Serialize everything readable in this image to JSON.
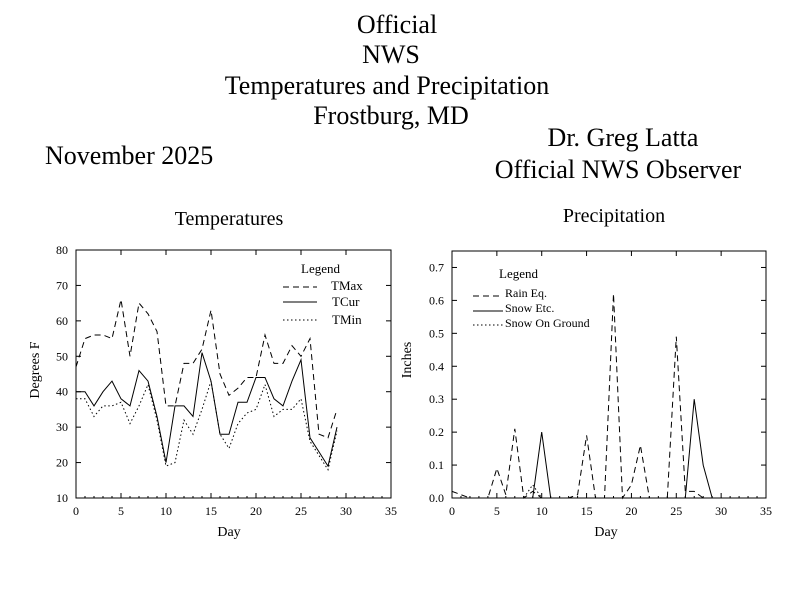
{
  "header": {
    "line1": "Official",
    "line2": "NWS",
    "line3": "Temperatures and Precipitation",
    "line4": "Frostburg, MD",
    "month": "November 2025",
    "observer_name": "Dr. Greg Latta",
    "observer_title": "Official NWS Observer"
  },
  "chart_data": [
    {
      "type": "line",
      "title": "Temperatures",
      "xlabel": "Day",
      "ylabel": "Degrees F",
      "xlim": [
        0,
        35
      ],
      "ylim": [
        10,
        80
      ],
      "xticks": [
        0,
        5,
        10,
        15,
        20,
        25,
        30,
        35
      ],
      "yticks": [
        10,
        20,
        30,
        40,
        50,
        60,
        70,
        80
      ],
      "legend_title": "Legend",
      "legend_position": "top-right",
      "x": [
        0,
        1,
        2,
        3,
        4,
        5,
        6,
        7,
        8,
        9,
        10,
        11,
        12,
        13,
        14,
        15,
        16,
        17,
        18,
        19,
        20,
        21,
        22,
        23,
        24,
        25,
        26,
        27,
        28,
        29
      ],
      "series": [
        {
          "name": "TMax",
          "style": "dashed",
          "values": [
            47,
            55,
            56,
            56,
            55,
            66,
            50,
            65,
            62,
            57,
            36,
            36,
            48,
            48,
            52,
            63,
            45,
            39,
            41,
            44,
            44,
            56,
            48,
            48,
            53,
            50,
            55,
            28,
            27,
            35
          ]
        },
        {
          "name": "TCur",
          "style": "solid",
          "values": [
            40,
            40,
            36,
            40,
            43,
            38,
            36,
            46,
            43,
            33,
            20,
            36,
            36,
            33,
            51,
            43,
            28,
            28,
            37,
            37,
            44,
            44,
            38,
            36,
            43,
            49,
            27,
            23,
            19,
            30
          ]
        },
        {
          "name": "TMin",
          "style": "dotted",
          "values": [
            38,
            38,
            33,
            36,
            36,
            37,
            31,
            36,
            42,
            32,
            19,
            20,
            32,
            28,
            35,
            43,
            28,
            24,
            31,
            34,
            35,
            42,
            33,
            35,
            35,
            38,
            26,
            22,
            18,
            29
          ]
        }
      ]
    },
    {
      "type": "line",
      "title": "Precipitation",
      "xlabel": "Day",
      "ylabel": "Inches",
      "xlim": [
        0,
        35
      ],
      "ylim": [
        0,
        0.75
      ],
      "xticks": [
        0,
        5,
        10,
        15,
        20,
        25,
        30,
        35
      ],
      "yticks": [
        "0.0",
        "0.1",
        "0.2",
        "0.3",
        "0.4",
        "0.5",
        "0.6",
        "0.7"
      ],
      "legend_title": "Legend",
      "legend_position": "top-left",
      "x": [
        0,
        1,
        2,
        3,
        4,
        5,
        6,
        7,
        8,
        9,
        10,
        11,
        12,
        13,
        14,
        15,
        16,
        17,
        18,
        19,
        20,
        21,
        22,
        23,
        24,
        25,
        26,
        27,
        28,
        29
      ],
      "series": [
        {
          "name": "Rain Eq.",
          "style": "dashed",
          "values": [
            0.02,
            0.01,
            0,
            0,
            0,
            0.09,
            0.01,
            0.21,
            0,
            0.02,
            0,
            0,
            0,
            0,
            0.01,
            0.19,
            0,
            0,
            0.62,
            0,
            0.04,
            0.16,
            0,
            0,
            0,
            0.49,
            0.02,
            0.02,
            0,
            0
          ]
        },
        {
          "name": "Snow Etc.",
          "style": "solid",
          "values": [
            0,
            0,
            0,
            0,
            0,
            0,
            0,
            0,
            0,
            0,
            0.2,
            0,
            0,
            0,
            0,
            0,
            0,
            0,
            0,
            0,
            0,
            0,
            0,
            0,
            0,
            0,
            0,
            0.3,
            0.1,
            0
          ]
        },
        {
          "name": "Snow On Ground",
          "style": "dotted",
          "values": [
            0,
            0,
            0,
            0,
            0,
            0,
            0,
            0,
            0,
            0.04,
            0,
            0,
            0,
            0,
            0,
            0,
            0,
            0,
            0,
            0,
            0,
            0,
            0,
            0,
            0,
            0,
            0,
            0,
            0,
            0
          ]
        }
      ]
    }
  ]
}
